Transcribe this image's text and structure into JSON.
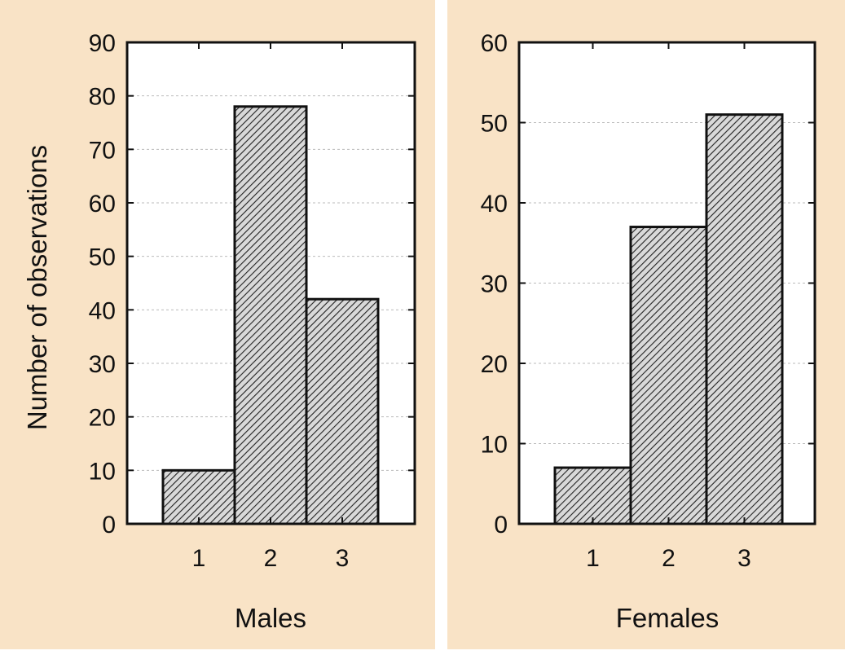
{
  "colors": {
    "panel_bg": "#f9e3c6",
    "plot_bg": "#ffffff",
    "bar_fill": "#d9d9d9",
    "bar_hatch": "#222222",
    "grid": "#bbbbbb"
  },
  "chart_data": [
    {
      "type": "bar",
      "categories": [
        "1",
        "2",
        "3"
      ],
      "values": [
        10,
        78,
        42
      ],
      "xlabel": "Males",
      "ylabel": "Number of observations",
      "ylim": [
        0,
        90
      ],
      "yticks": [
        "0",
        "10",
        "20",
        "30",
        "40",
        "50",
        "60",
        "70",
        "80",
        "90"
      ],
      "grid": true
    },
    {
      "type": "bar",
      "categories": [
        "1",
        "2",
        "3"
      ],
      "values": [
        7,
        37,
        51
      ],
      "xlabel": "Females",
      "ylabel": "",
      "ylim": [
        0,
        60
      ],
      "yticks": [
        "0",
        "10",
        "20",
        "30",
        "40",
        "50",
        "60"
      ],
      "grid": true
    }
  ]
}
